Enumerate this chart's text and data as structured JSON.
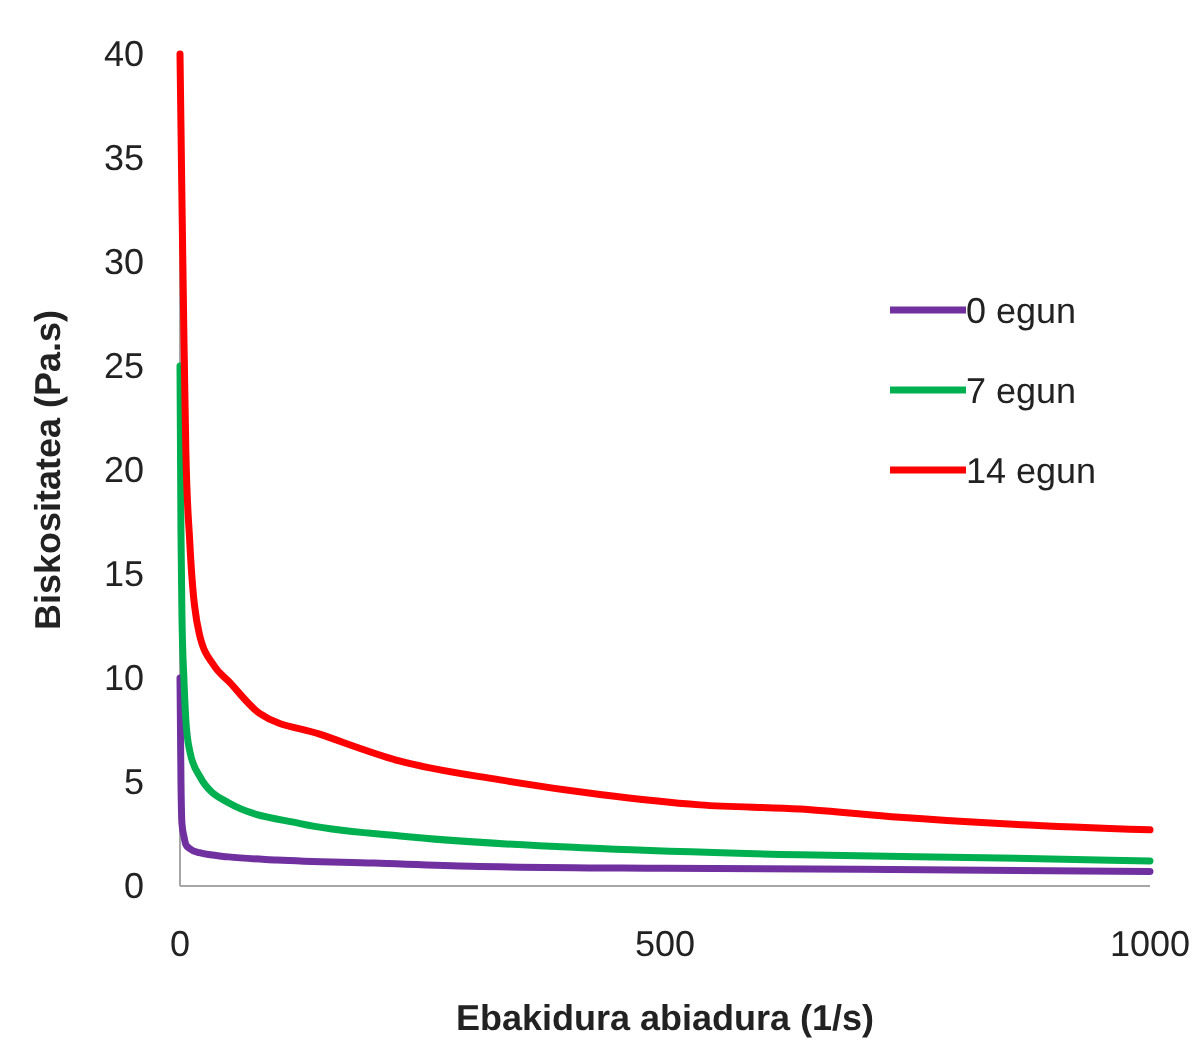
{
  "chart_data": {
    "type": "line",
    "xlabel": "Ebakidura abiadura (1/s)",
    "ylabel": "Biskositatea (Pa.s)",
    "xlim": [
      0,
      1000
    ],
    "xticks": [
      0,
      500,
      1000
    ],
    "ylim": [
      0,
      40
    ],
    "yticks": [
      0,
      5,
      10,
      15,
      20,
      25,
      30,
      35,
      40
    ],
    "grid": false,
    "legend": "right",
    "marker": "none",
    "line_style": "solid",
    "series": [
      {
        "name": "0 egun",
        "color": "#7030a0",
        "x": [
          0,
          1,
          2,
          4,
          6,
          10,
          20,
          50,
          100,
          200,
          300,
          500,
          700,
          1000
        ],
        "values": [
          10,
          5,
          3,
          2.4,
          2,
          1.8,
          1.6,
          1.4,
          1.25,
          1.1,
          0.95,
          0.85,
          0.8,
          0.7
        ]
      },
      {
        "name": "7 egun",
        "color": "#00b050",
        "x": [
          0,
          1,
          2,
          4,
          6,
          10,
          20,
          50,
          124,
          227,
          433,
          639,
          845,
          1000
        ],
        "values": [
          25,
          17,
          13,
          10,
          8,
          6.5,
          5.3,
          4,
          3,
          2.4,
          1.8,
          1.5,
          1.35,
          1.2
        ]
      },
      {
        "name": "14 egun",
        "color": "#ff0000",
        "x": [
          0,
          2,
          4,
          6,
          10,
          20,
          35,
          51,
          82,
          144,
          227,
          330,
          433,
          536,
          639,
          742,
          845,
          1000
        ],
        "values": [
          40,
          33,
          26.5,
          21,
          16.6,
          12.1,
          10.6,
          9.8,
          8.3,
          7.3,
          6,
          5.1,
          4.4,
          3.9,
          3.7,
          3.3,
          3,
          2.7
        ]
      }
    ]
  }
}
